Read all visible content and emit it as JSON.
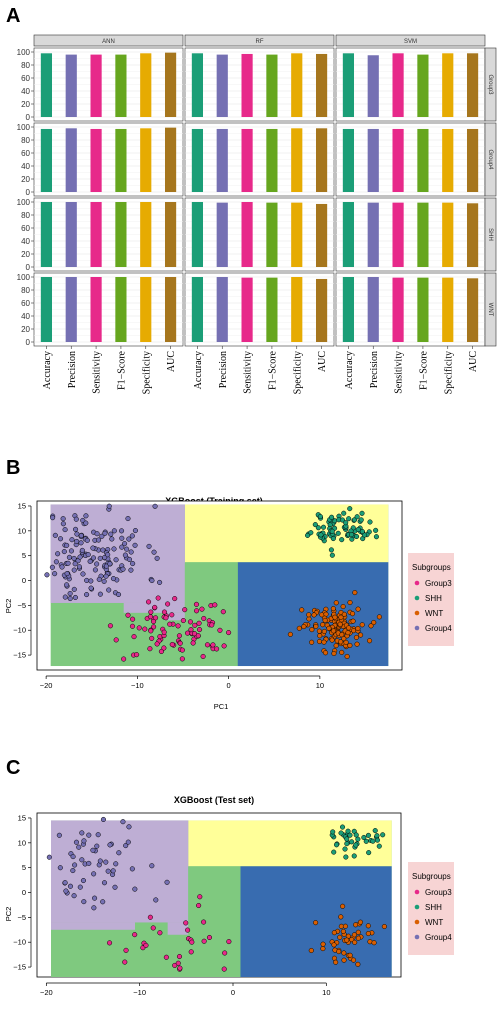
{
  "panel_labels": [
    "A",
    "B",
    "C"
  ],
  "colors": {
    "accuracy": "#1b9e77",
    "precision": "#7570b3",
    "sensitivity": "#e7298a",
    "f1": "#66a61e",
    "specificity": "#e6ab02",
    "auc": "#a6761d",
    "group3": "#e7298a",
    "shh": "#1b9e77",
    "wnt": "#d95f02",
    "group4": "#7570b3",
    "region_group4": "#beaed4",
    "region_shh": "#ffff99",
    "region_wnt": "#386cb0",
    "region_group3": "#7fc97f"
  },
  "chart_data": [
    {
      "type": "bar",
      "facet_columns": [
        "ANN",
        "RF",
        "SVM"
      ],
      "facet_rows": [
        "Group3",
        "Group4",
        "SHH",
        "WNT"
      ],
      "categories": [
        "Accuracy",
        "Precision",
        "Sensitivity",
        "F1−Score",
        "Specificity",
        "AUC"
      ],
      "yticks": [
        "0",
        "20",
        "40",
        "60",
        "80",
        "100"
      ],
      "ylim": [
        0,
        100
      ],
      "grid": true,
      "values": {
        "ANN": {
          "Group3": [
            98,
            96,
            96,
            96,
            98,
            99
          ],
          "Group4": [
            97,
            98,
            97,
            97,
            98,
            99
          ],
          "SHH": [
            100,
            100,
            100,
            100,
            100,
            100
          ],
          "WNT": [
            100,
            100,
            100,
            100,
            100,
            100
          ]
        },
        "RF": {
          "Group3": [
            98,
            96,
            97,
            96,
            98,
            97
          ],
          "Group4": [
            97,
            97,
            97,
            97,
            98,
            98
          ],
          "SHH": [
            100,
            99,
            100,
            99,
            99,
            97
          ],
          "WNT": [
            100,
            100,
            99,
            99,
            100,
            97
          ]
        },
        "SVM": {
          "Group3": [
            98,
            95,
            98,
            96,
            98,
            98
          ],
          "Group4": [
            97,
            97,
            97,
            97,
            97,
            97
          ],
          "SHH": [
            100,
            99,
            99,
            99,
            99,
            98
          ],
          "WNT": [
            100,
            100,
            99,
            99,
            99,
            98
          ]
        }
      }
    },
    {
      "type": "scatter",
      "title": "XGBoost (Training set)",
      "xlabel": "PC1",
      "ylabel": "PC2",
      "xlim": [
        -21,
        19
      ],
      "ylim": [
        -18,
        16
      ],
      "xticks": [
        "−20",
        "−10",
        "0",
        "10"
      ],
      "yticks": [
        "−15",
        "−10",
        "−5",
        "0",
        "5",
        "10",
        "15"
      ],
      "legend_title": "Subgroups",
      "legend": [
        "Group3",
        "SHH",
        "WNT",
        "Group4"
      ],
      "legend_position": "right"
    },
    {
      "type": "scatter",
      "title": "XGBoost (Test set)",
      "xlabel": "",
      "ylabel": "PC2",
      "xlim": [
        -21,
        18
      ],
      "ylim": [
        -17,
        16
      ],
      "xticks": [
        "−20",
        "−10",
        "0",
        "10"
      ],
      "yticks": [
        "−15",
        "−10",
        "−5",
        "0",
        "5",
        "10",
        "15"
      ],
      "legend_title": "Subgroups",
      "legend": [
        "Group3",
        "SHH",
        "WNT",
        "Group4"
      ],
      "legend_position": "right"
    }
  ]
}
